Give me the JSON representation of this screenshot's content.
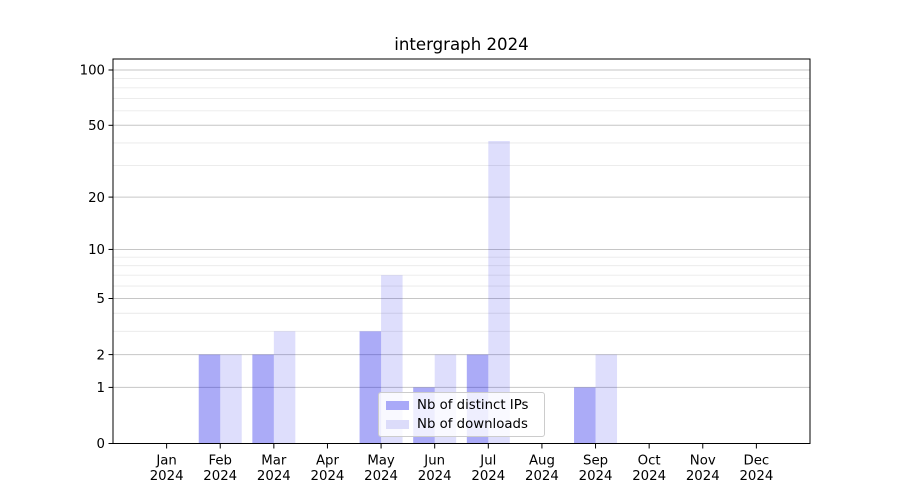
{
  "figure": {
    "background": "#ffffff"
  },
  "chart_data": {
    "type": "bar",
    "title": "intergraph 2024",
    "categories": [
      "Jan",
      "Feb",
      "Mar",
      "Apr",
      "May",
      "Jun",
      "Jul",
      "Aug",
      "Sep",
      "Oct",
      "Nov",
      "Dec"
    ],
    "category_year": "2024",
    "series": [
      {
        "name": "Nb of distinct IPs",
        "values": [
          0,
          2,
          2,
          0,
          3,
          1,
          2,
          0,
          1,
          0,
          0,
          0
        ],
        "color_base": "#0000e6",
        "fill_opacity": 0.33,
        "appears_as": "#a9a9f8"
      },
      {
        "name": "Nb of downloads",
        "values": [
          0,
          2,
          3,
          0,
          7,
          2,
          41,
          0,
          2,
          0,
          0,
          0
        ],
        "color_base": "#0000e6",
        "fill_opacity": 0.13,
        "appears_as": "#dcdcfa"
      }
    ],
    "y_axis": {
      "scale": "log10(1+value)",
      "major_ticks": [
        0,
        1,
        2,
        5,
        10,
        20,
        50,
        100
      ],
      "minor_gridlines": [
        3,
        4,
        6,
        7,
        8,
        9,
        30,
        40,
        60,
        70,
        80,
        90
      ],
      "top_value": 115
    },
    "x_axis": {
      "tick_count": 12
    },
    "legend": {
      "position": "lower center"
    },
    "colors": {
      "grid_major": "#c6c6c6",
      "grid_minor": "#e9e9e9",
      "spine": "#000000",
      "text": "#000000",
      "legend_border": "#cccccc",
      "legend_bg": "rgba(255,255,255,0.8)"
    }
  }
}
